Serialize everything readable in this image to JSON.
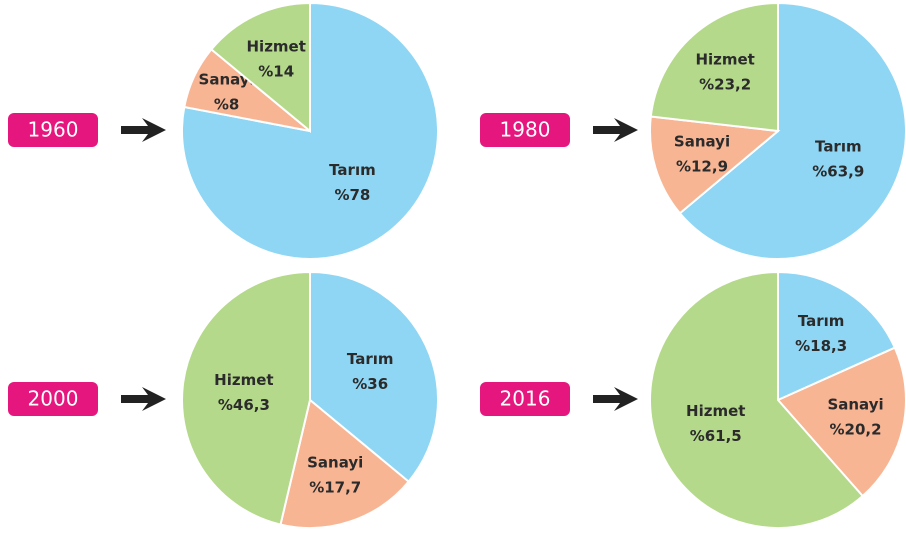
{
  "chart_data": [
    {
      "type": "pie",
      "title": "1960",
      "categories": [
        "Tarım",
        "Sanayi",
        "Hizmet"
      ],
      "values": [
        78,
        8,
        14
      ],
      "value_labels": [
        "%78",
        "%8",
        "%14"
      ],
      "colors": [
        "#8fd6f4",
        "#f8b594",
        "#b5d98b"
      ]
    },
    {
      "type": "pie",
      "title": "1980",
      "categories": [
        "Tarım",
        "Sanayi",
        "Hizmet"
      ],
      "values": [
        63.9,
        12.9,
        23.2
      ],
      "value_labels": [
        "%63,9",
        "%12,9",
        "%23,2"
      ],
      "colors": [
        "#8fd6f4",
        "#f8b594",
        "#b5d98b"
      ]
    },
    {
      "type": "pie",
      "title": "2000",
      "categories": [
        "Tarım",
        "Sanayi",
        "Hizmet"
      ],
      "values": [
        36,
        17.7,
        46.3
      ],
      "value_labels": [
        "%36",
        "%17,7",
        "%46,3"
      ],
      "colors": [
        "#8fd6f4",
        "#f8b594",
        "#b5d98b"
      ]
    },
    {
      "type": "pie",
      "title": "2016",
      "categories": [
        "Tarım",
        "Sanayi",
        "Hizmet"
      ],
      "values": [
        18.3,
        20.2,
        61.5
      ],
      "value_labels": [
        "%18,3",
        "%20,2",
        "%61,5"
      ],
      "colors": [
        "#8fd6f4",
        "#f8b594",
        "#b5d98b"
      ]
    }
  ]
}
